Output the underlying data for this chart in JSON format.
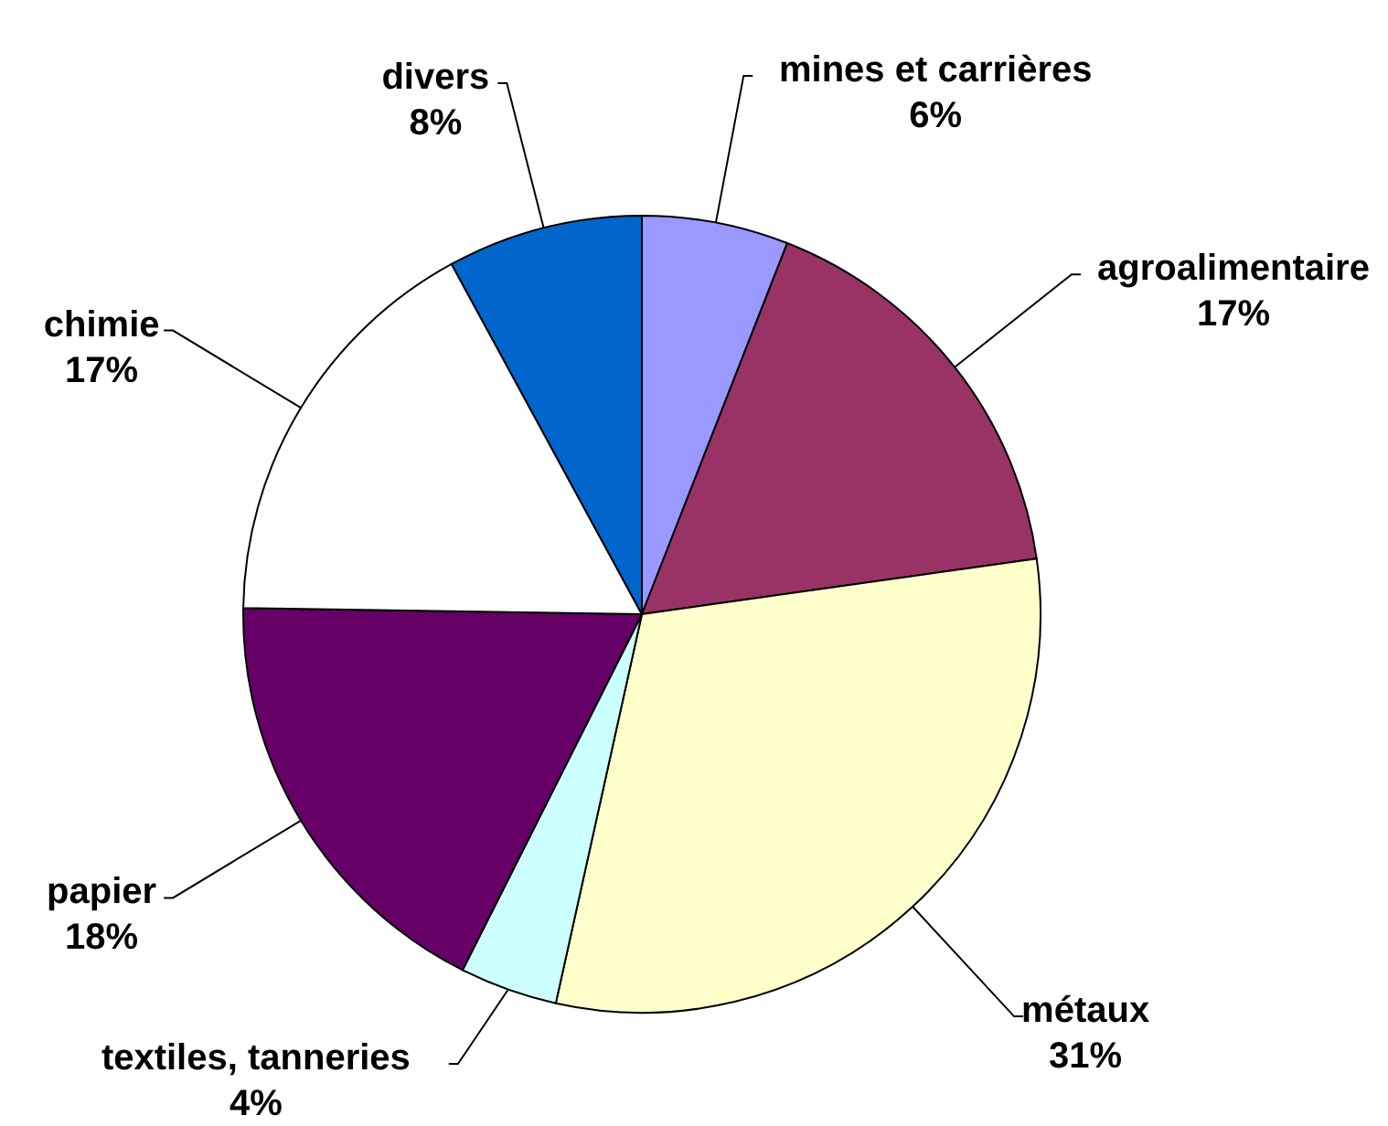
{
  "chart_data": {
    "type": "pie",
    "categories": [
      "mines et carrières",
      "agroalimentaire",
      "métaux",
      "textiles, tanneries",
      "papier",
      "chimie",
      "divers"
    ],
    "values": [
      6,
      17,
      31,
      4,
      18,
      17,
      8
    ],
    "colors": [
      "#9999ff",
      "#993366",
      "#ffffcc",
      "#ccffff",
      "#660066",
      "#ffffff",
      "#0066cc"
    ],
    "value_labels": [
      "6%",
      "17%",
      "31%",
      "4%",
      "18%",
      "17%",
      "8%"
    ]
  }
}
